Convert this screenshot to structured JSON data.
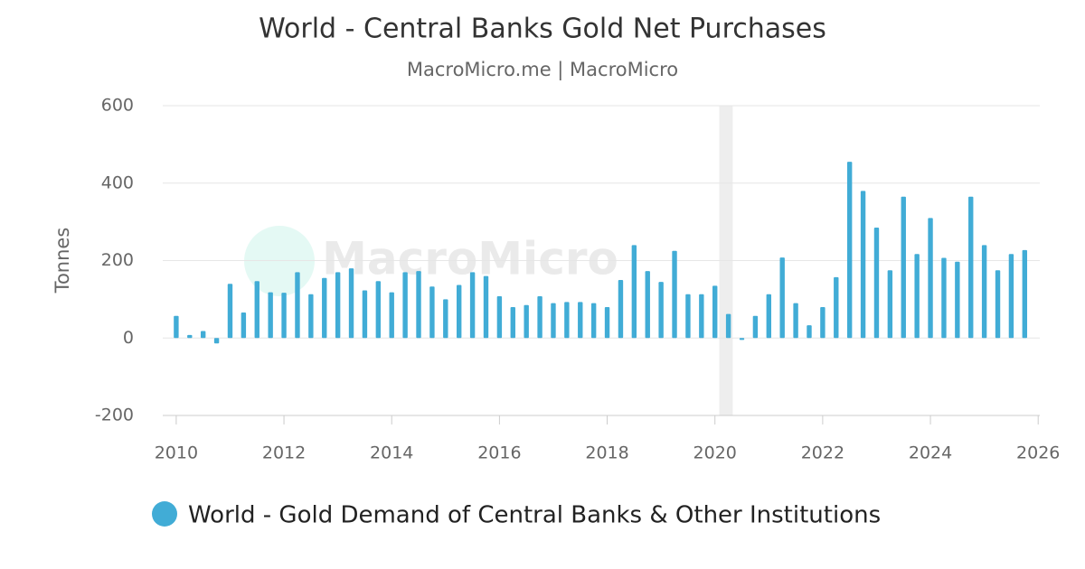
{
  "chart_data": {
    "type": "bar",
    "title": "World - Central Banks Gold Net Purchases",
    "subtitle": "MacroMicro.me | MacroMicro",
    "watermark": "MacroMicro",
    "ylabel": "Tonnes",
    "x": [
      2010,
      2010.25,
      2010.5,
      2010.75,
      2011,
      2011.25,
      2011.5,
      2011.75,
      2012,
      2012.25,
      2012.5,
      2012.75,
      2013,
      2013.25,
      2013.5,
      2013.75,
      2014,
      2014.25,
      2014.5,
      2014.75,
      2015,
      2015.25,
      2015.5,
      2015.75,
      2016,
      2016.25,
      2016.5,
      2016.75,
      2017,
      2017.25,
      2017.5,
      2017.75,
      2018,
      2018.25,
      2018.5,
      2018.75,
      2019,
      2019.25,
      2019.5,
      2019.75,
      2020,
      2020.25,
      2020.5,
      2020.75,
      2021,
      2021.25,
      2021.5,
      2021.75,
      2022,
      2022.25,
      2022.5,
      2022.75,
      2023,
      2023.25,
      2023.5,
      2023.75,
      2024,
      2024.25,
      2024.5,
      2024.75,
      2025,
      2025.25,
      2025.5,
      2025.75
    ],
    "series": [
      {
        "name": "World - Gold Demand of Central Banks & Other Institutions",
        "color": "#41acd6",
        "values": [
          57,
          8,
          18,
          -14,
          140,
          66,
          147,
          118,
          117,
          170,
          113,
          155,
          170,
          180,
          123,
          147,
          118,
          170,
          173,
          133,
          100,
          137,
          170,
          160,
          108,
          80,
          85,
          108,
          90,
          93,
          93,
          90,
          80,
          150,
          240,
          173,
          145,
          225,
          113,
          113,
          135,
          62,
          -5,
          57,
          113,
          208,
          90,
          33,
          80,
          157,
          455,
          380,
          285,
          175,
          365,
          217,
          310,
          207,
          197,
          365,
          240,
          175,
          217,
          227
        ]
      }
    ],
    "xlim": [
      2009.75,
      2026.03
    ],
    "xticks": [
      2010,
      2012,
      2014,
      2016,
      2018,
      2020,
      2022,
      2024,
      2026
    ],
    "ylim": [
      -200,
      600
    ],
    "yticks": [
      -200,
      0,
      200,
      400,
      600
    ],
    "grid": true,
    "shaded_band": [
      2020.08,
      2020.33
    ]
  }
}
